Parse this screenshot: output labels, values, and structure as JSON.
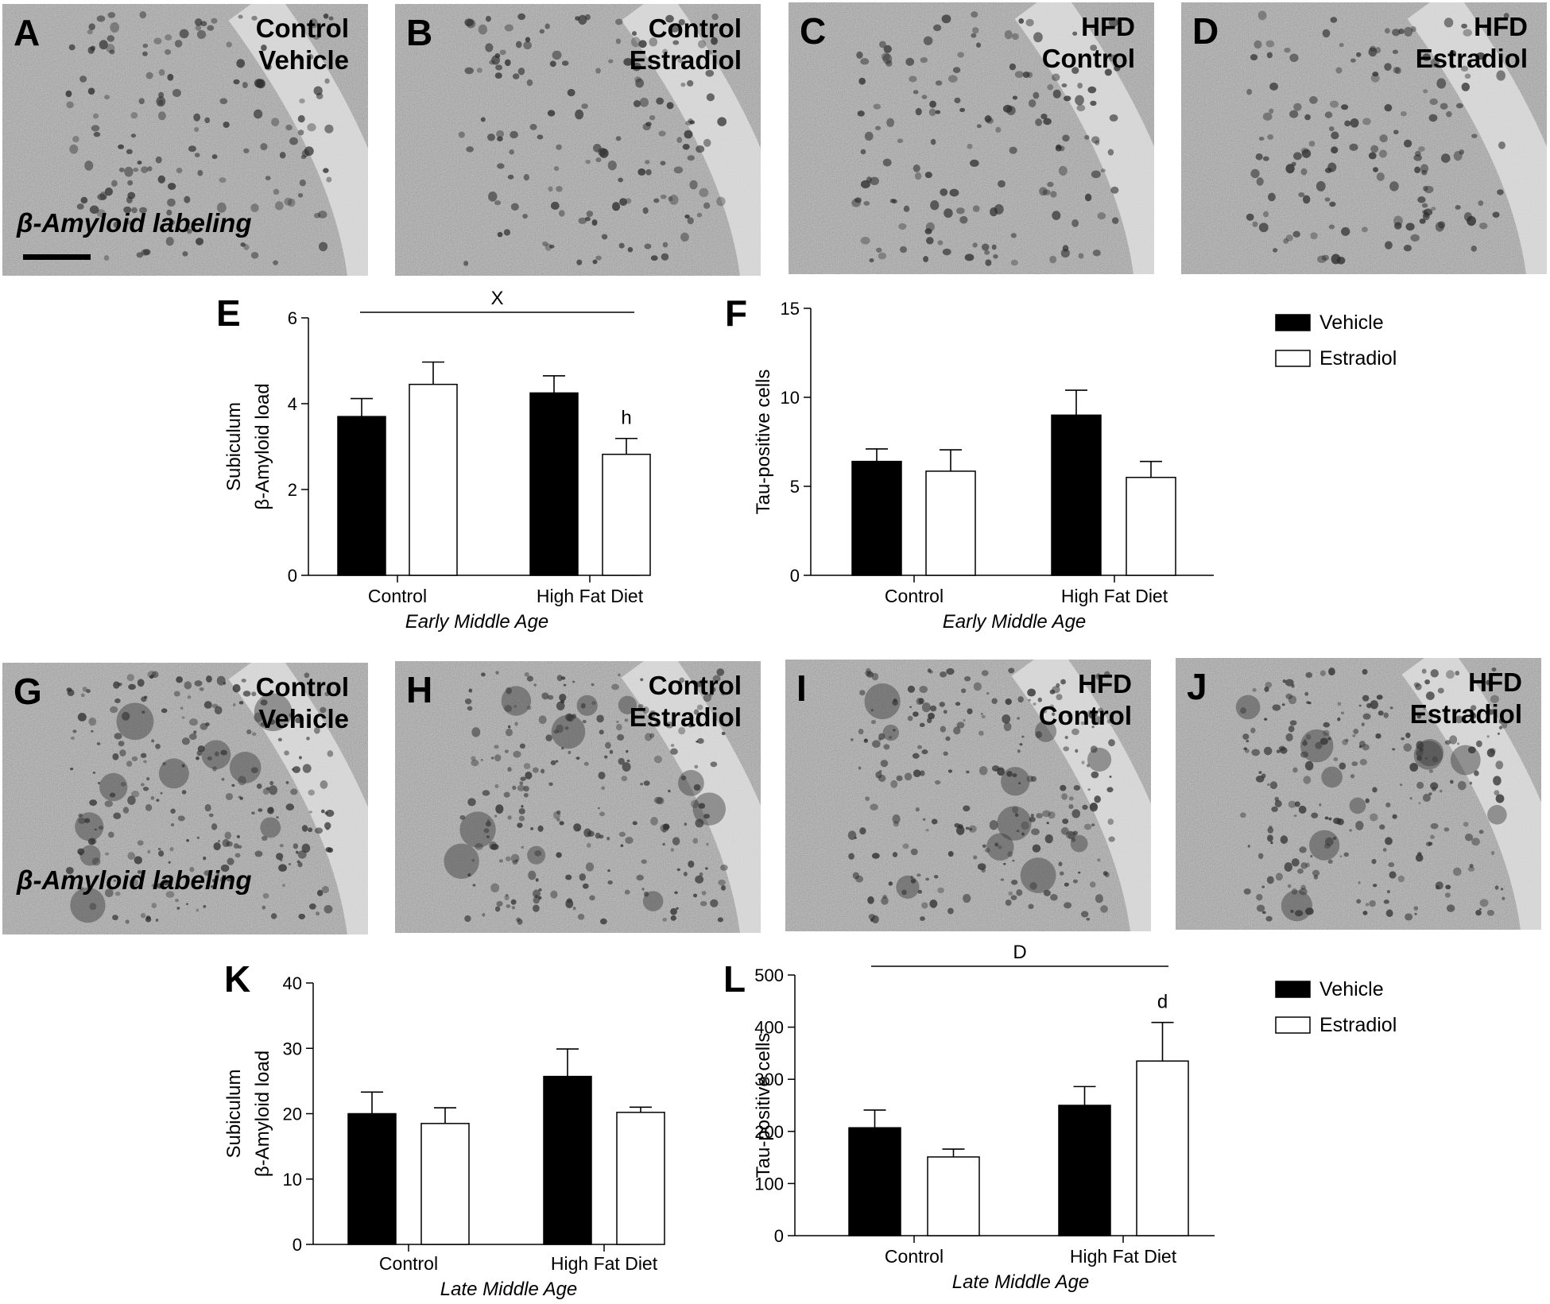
{
  "micrographs": [
    {
      "letter": "A",
      "line1": "Control",
      "line2": "Vehicle",
      "note": "β-Amyloid labeling",
      "scale_bar": true
    },
    {
      "letter": "B",
      "line1": "Control",
      "line2": "Estradiol",
      "note": "",
      "scale_bar": false
    },
    {
      "letter": "C",
      "line1": "HFD",
      "line2": "Control",
      "note": "",
      "scale_bar": false
    },
    {
      "letter": "D",
      "line1": "HFD",
      "line2": "Estradiol",
      "note": "",
      "scale_bar": false
    },
    {
      "letter": "G",
      "line1": "Control",
      "line2": "Vehicle",
      "note": "β-Amyloid labeling",
      "scale_bar": false
    },
    {
      "letter": "H",
      "line1": "Control",
      "line2": "Estradiol",
      "note": "",
      "scale_bar": false
    },
    {
      "letter": "I",
      "line1": "HFD",
      "line2": "Control",
      "note": "",
      "scale_bar": false
    },
    {
      "letter": "J",
      "line1": "HFD",
      "line2": "Estradiol",
      "note": "",
      "scale_bar": false
    }
  ],
  "legends": [
    {
      "items": [
        {
          "label": "Vehicle",
          "fill": "#000000"
        },
        {
          "label": "Estradiol",
          "fill": "#ffffff"
        }
      ]
    },
    {
      "items": [
        {
          "label": "Vehicle",
          "fill": "#000000"
        },
        {
          "label": "Estradiol",
          "fill": "#ffffff"
        }
      ]
    }
  ],
  "chart_data": [
    {
      "panel": "E",
      "type": "bar",
      "categories": [
        "Control",
        "High Fat Diet"
      ],
      "group_label": "Early Middle Age",
      "ylabel_lines": [
        "Subiculum",
        "β-Amyloid load"
      ],
      "ylim": [
        0,
        6
      ],
      "yticks": [
        0,
        2,
        4,
        6
      ],
      "series": [
        {
          "name": "Vehicle",
          "color": "#000000",
          "values": [
            3.7,
            4.25
          ],
          "errors": [
            0.42,
            0.4
          ]
        },
        {
          "name": "Estradiol",
          "color": "#ffffff",
          "values": [
            4.45,
            2.82
          ],
          "errors": [
            0.52,
            0.37
          ]
        }
      ],
      "bar_annotations": [
        {
          "category": 1,
          "series": 1,
          "text": "h"
        }
      ],
      "bracket": {
        "text": "X",
        "from": 0,
        "to": 1
      }
    },
    {
      "panel": "F",
      "type": "bar",
      "categories": [
        "Control",
        "High Fat Diet"
      ],
      "group_label": "Early Middle  Age",
      "ylabel_lines": [
        "Tau-positive cells"
      ],
      "ylim": [
        0,
        15
      ],
      "yticks": [
        0,
        5,
        10,
        15
      ],
      "series": [
        {
          "name": "Vehicle",
          "color": "#000000",
          "values": [
            6.4,
            9.0
          ],
          "errors": [
            0.7,
            1.4
          ]
        },
        {
          "name": "Estradiol",
          "color": "#ffffff",
          "values": [
            5.85,
            5.5
          ],
          "errors": [
            1.2,
            0.9
          ]
        }
      ],
      "bar_annotations": [],
      "bracket": null
    },
    {
      "panel": "K",
      "type": "bar",
      "categories": [
        "Control",
        "High Fat Diet"
      ],
      "group_label": "Late Middle Age",
      "ylabel_lines": [
        "Subiculum",
        "β-Amyloid load"
      ],
      "ylim": [
        0,
        40
      ],
      "yticks": [
        0,
        10,
        20,
        30,
        40
      ],
      "series": [
        {
          "name": "Vehicle",
          "color": "#000000",
          "values": [
            20.0,
            25.7
          ],
          "errors": [
            3.3,
            4.2
          ]
        },
        {
          "name": "Estradiol",
          "color": "#ffffff",
          "values": [
            18.5,
            20.2
          ],
          "errors": [
            2.4,
            0.8
          ]
        }
      ],
      "bar_annotations": [],
      "bracket": null
    },
    {
      "panel": "L",
      "type": "bar",
      "categories": [
        "Control",
        "High Fat Diet"
      ],
      "group_label": "Late Middle Age",
      "ylabel_lines": [
        "Tau-positive cells"
      ],
      "ylim": [
        0,
        500
      ],
      "yticks": [
        0,
        100,
        200,
        300,
        400,
        500
      ],
      "series": [
        {
          "name": "Vehicle",
          "color": "#000000",
          "values": [
            207,
            250
          ],
          "errors": [
            34,
            36
          ]
        },
        {
          "name": "Estradiol",
          "color": "#ffffff",
          "values": [
            151,
            335
          ],
          "errors": [
            15,
            74
          ]
        }
      ],
      "bar_annotations": [
        {
          "category": 1,
          "series": 1,
          "text": "d"
        }
      ],
      "bracket": {
        "text": "D",
        "from": 0,
        "to": 1
      }
    }
  ]
}
